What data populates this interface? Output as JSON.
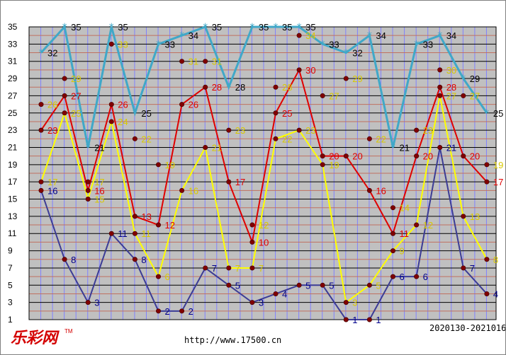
{
  "footer": {
    "brand": "乐彩网",
    "url": "http://www.17500.cn",
    "date_range": "2020130-2021016"
  },
  "colors": {
    "plot_bg": "#c0c0c0",
    "grid_red": "#c07060",
    "grid_black": "#000000",
    "grid_vertical": "#8080ff",
    "series": [
      "#3c3c96",
      "#ffff00",
      "#e00000",
      "#40a8c8"
    ],
    "label_colors": [
      "#00008b",
      "#d8c800",
      "#e00000",
      "#000000"
    ],
    "marker": "#800000"
  },
  "chart_data": {
    "type": "line",
    "x": [
      1,
      2,
      3,
      4,
      5,
      6,
      7,
      8,
      9,
      10,
      11,
      12,
      13,
      14,
      15,
      16,
      17,
      18,
      19,
      20
    ],
    "ylim": [
      1,
      35
    ],
    "yticks": [
      1,
      3,
      5,
      7,
      9,
      11,
      13,
      15,
      17,
      19,
      21,
      23,
      25,
      27,
      29,
      31,
      33,
      35
    ],
    "series": [
      {
        "values": [
          16,
          8,
          3,
          11,
          8,
          2,
          2,
          7,
          5,
          3,
          4,
          5,
          5,
          1,
          1,
          6,
          6,
          21,
          7,
          4
        ]
      },
      {
        "values": [
          17,
          25,
          15,
          24,
          11,
          6,
          16,
          21,
          7,
          7,
          22,
          23,
          19,
          3,
          5,
          9,
          12,
          27,
          13,
          8
        ]
      },
      {
        "values": [
          23,
          27,
          16,
          26,
          13,
          12,
          26,
          28,
          17,
          10,
          25,
          30,
          20,
          20,
          16,
          11,
          20,
          28,
          20,
          17
        ]
      },
      {
        "values": [
          32,
          35,
          21,
          35,
          25,
          33,
          34,
          35,
          28,
          35,
          35,
          35,
          33,
          32,
          34,
          21,
          33,
          34,
          29,
          25
        ]
      }
    ],
    "extra_points": [
      {
        "x": 1,
        "y": 26
      },
      {
        "x": 2,
        "y": 29
      },
      {
        "x": 3,
        "y": 17
      },
      {
        "x": 4,
        "y": 33
      },
      {
        "x": 5,
        "y": 22
      },
      {
        "x": 6,
        "y": 19
      },
      {
        "x": 7,
        "y": 31
      },
      {
        "x": 8,
        "y": 31
      },
      {
        "x": 9,
        "y": 23
      },
      {
        "x": 10,
        "y": 12
      },
      {
        "x": 11,
        "y": 28
      },
      {
        "x": 12,
        "y": 34
      },
      {
        "x": 13,
        "y": 27
      },
      {
        "x": 14,
        "y": 29
      },
      {
        "x": 15,
        "y": 22
      },
      {
        "x": 16,
        "y": 14
      },
      {
        "x": 17,
        "y": 23
      },
      {
        "x": 18,
        "y": 30
      },
      {
        "x": 19,
        "y": 27
      },
      {
        "x": 20,
        "y": 19
      }
    ],
    "grid": true
  }
}
